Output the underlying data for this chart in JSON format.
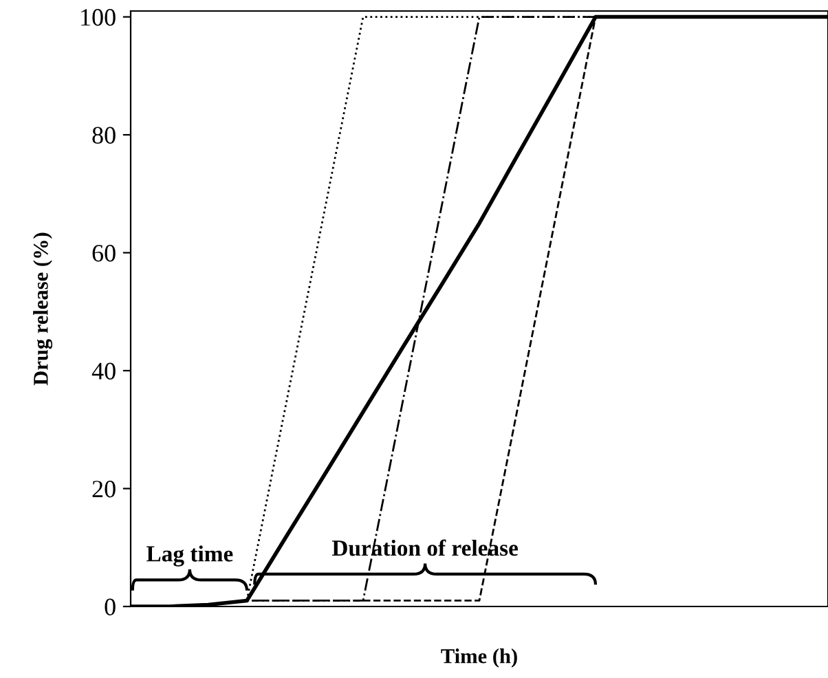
{
  "chart_data": {
    "type": "line",
    "xlabel": "Time (h)",
    "ylabel": "Drug release (%)",
    "categories": [
      null,
      null,
      null,
      null,
      null,
      null,
      null,
      null,
      null,
      null,
      null,
      null,
      null,
      null,
      null,
      null,
      null,
      null,
      null
    ],
    "series": [
      {
        "color": "#000000",
        "line_style": "solid",
        "values": [
          0,
          0,
          0.3,
          1,
          11.7,
          22.3,
          33,
          43.7,
          54.3,
          65,
          76.7,
          88.3,
          100,
          100,
          100,
          100,
          100,
          100,
          100
        ]
      },
      {
        "color": "#000000",
        "line_style": "dotted",
        "values": [
          0,
          0,
          0.3,
          1,
          34,
          67,
          100,
          100,
          100,
          100,
          100,
          100,
          100,
          100,
          100,
          100,
          100,
          100,
          100
        ]
      },
      {
        "color": "#000000",
        "line_style": "dashdot",
        "values": [
          0,
          0,
          0.3,
          1,
          1,
          1,
          1,
          34,
          67,
          100,
          100,
          100,
          100,
          100,
          100,
          100,
          100,
          100,
          100
        ]
      },
      {
        "color": "#000000",
        "line_style": "dashed",
        "values": [
          0,
          0,
          0.3,
          1,
          1,
          1,
          1,
          1,
          1,
          1,
          34,
          67,
          100,
          100,
          100,
          100,
          100,
          100,
          100
        ]
      }
    ],
    "ylim": [
      0,
      101
    ],
    "yticks": [
      0,
      20,
      40,
      60,
      80,
      100
    ],
    "grid": false,
    "legend": false,
    "marker": "none",
    "tick_labels": "y",
    "annotations": [
      "Lag time",
      "Duration of release"
    ]
  }
}
